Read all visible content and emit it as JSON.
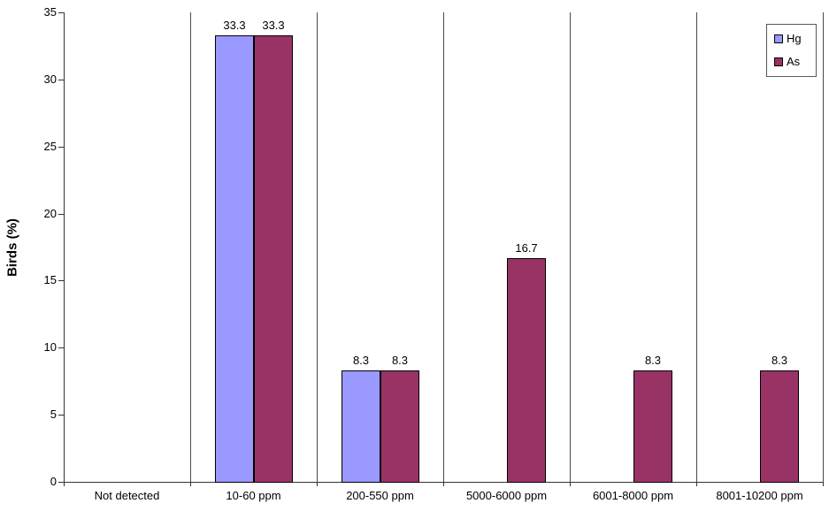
{
  "chart_data": {
    "type": "bar",
    "ylabel": "Birds (%)",
    "xlabel": "",
    "ylim": [
      0,
      35
    ],
    "yticks": [
      0,
      5,
      10,
      15,
      20,
      25,
      30,
      35
    ],
    "categories": [
      "Not detected",
      "10-60 ppm",
      "200-550 ppm",
      "5000-6000 ppm",
      "6001-8000 ppm",
      "8001-10200 ppm"
    ],
    "series": [
      {
        "name": "Hg",
        "color": "#9999FF",
        "values": [
          0,
          33.3,
          8.3,
          0,
          0,
          0
        ]
      },
      {
        "name": "As",
        "color": "#993366",
        "values": [
          0,
          33.3,
          8.3,
          16.7,
          8.3,
          8.3
        ]
      }
    ],
    "legend_position": "top-right",
    "grid": "vertical-category-separators",
    "bar_labels": "one decimal, shown only for non-zero bars"
  },
  "colors": {
    "hg_fill": "#9999FF",
    "as_fill": "#993366",
    "bar_border": "#000000",
    "axis": "#333333",
    "separator": "#4a4a4a",
    "background": "#ffffff"
  }
}
